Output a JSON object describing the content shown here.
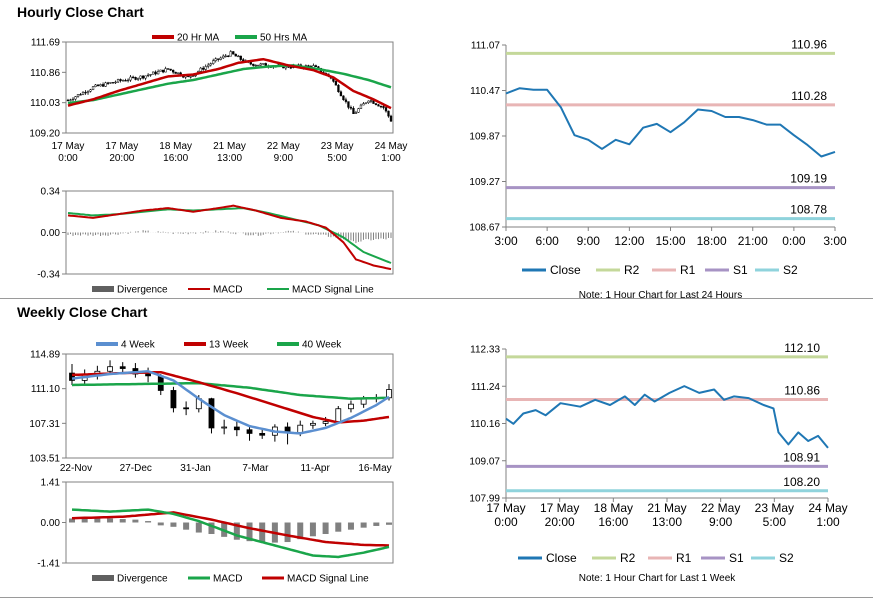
{
  "sections": {
    "hourly_title": "Hourly Close Chart",
    "weekly_title": "Weekly Close Chart"
  },
  "colors": {
    "ma_short": "#c00000",
    "ma_long": "#1aa54a",
    "ma_fast": "#5b8fd0",
    "close_line": "#1f77b4",
    "r2": "#c4d89a",
    "r1": "#e8b5b5",
    "s1": "#a793c4",
    "s2": "#8fd3dc",
    "divergence": "#808080"
  },
  "chart_data": [
    {
      "id": "hourly_price",
      "type": "candlestick",
      "ylim": [
        109.2,
        111.69
      ],
      "y_ticks": [
        "111.69",
        "110.86",
        "110.03",
        "109.20"
      ],
      "x_ticks": [
        {
          "top": "17 May",
          "bottom": "0:00"
        },
        {
          "top": "17 May",
          "bottom": "20:00"
        },
        {
          "top": "18 May",
          "bottom": "16:00"
        },
        {
          "top": "21 May",
          "bottom": "13:00"
        },
        {
          "top": "22 May",
          "bottom": "9:00"
        },
        {
          "top": "23 May",
          "bottom": "5:00"
        },
        {
          "top": "24 May",
          "bottom": "1:00"
        }
      ],
      "legend": [
        "20 Hr MA",
        "50 Hrs MA"
      ],
      "n": 130,
      "close": [
        [
          0,
          110.1
        ],
        [
          10,
          110.45
        ],
        [
          20,
          110.62
        ],
        [
          30,
          110.75
        ],
        [
          40,
          110.95
        ],
        [
          48,
          110.72
        ],
        [
          58,
          111.15
        ],
        [
          65,
          111.38
        ],
        [
          72,
          111.1
        ],
        [
          85,
          111.02
        ],
        [
          98,
          111.02
        ],
        [
          105,
          110.72
        ],
        [
          110,
          110.15
        ],
        [
          114,
          109.72
        ],
        [
          120,
          110.12
        ],
        [
          126,
          109.9
        ],
        [
          129,
          109.55
        ]
      ],
      "ma20": [
        [
          0,
          109.95
        ],
        [
          10,
          110.12
        ],
        [
          20,
          110.35
        ],
        [
          30,
          110.55
        ],
        [
          40,
          110.75
        ],
        [
          50,
          110.8
        ],
        [
          60,
          110.95
        ],
        [
          68,
          111.12
        ],
        [
          78,
          111.22
        ],
        [
          88,
          111.05
        ],
        [
          98,
          110.92
        ],
        [
          106,
          110.72
        ],
        [
          114,
          110.35
        ],
        [
          122,
          110.12
        ],
        [
          129,
          109.88
        ]
      ],
      "ma50": [
        [
          0,
          110.02
        ],
        [
          10,
          110.1
        ],
        [
          20,
          110.25
        ],
        [
          30,
          110.4
        ],
        [
          40,
          110.55
        ],
        [
          50,
          110.65
        ],
        [
          60,
          110.8
        ],
        [
          70,
          110.95
        ],
        [
          80,
          111.02
        ],
        [
          90,
          111.05
        ],
        [
          100,
          110.95
        ],
        [
          110,
          110.82
        ],
        [
          120,
          110.65
        ],
        [
          129,
          110.45
        ]
      ]
    },
    {
      "id": "hourly_macd",
      "type": "line",
      "ylim": [
        -0.34,
        0.34
      ],
      "y_ticks": [
        "0.34",
        "0.00",
        "-0.34"
      ],
      "legend": [
        "Divergence",
        "MACD",
        "MACD Signal Line"
      ],
      "n": 130,
      "macd": [
        [
          0,
          0.14
        ],
        [
          10,
          0.12
        ],
        [
          20,
          0.15
        ],
        [
          30,
          0.18
        ],
        [
          40,
          0.2
        ],
        [
          50,
          0.17
        ],
        [
          60,
          0.2
        ],
        [
          66,
          0.22
        ],
        [
          75,
          0.18
        ],
        [
          85,
          0.12
        ],
        [
          95,
          0.09
        ],
        [
          103,
          0.04
        ],
        [
          110,
          -0.08
        ],
        [
          115,
          -0.22
        ],
        [
          122,
          -0.27
        ],
        [
          129,
          -0.3
        ]
      ],
      "signal": [
        [
          0,
          0.16
        ],
        [
          10,
          0.14
        ],
        [
          20,
          0.15
        ],
        [
          30,
          0.17
        ],
        [
          40,
          0.19
        ],
        [
          50,
          0.18
        ],
        [
          60,
          0.19
        ],
        [
          70,
          0.2
        ],
        [
          80,
          0.16
        ],
        [
          90,
          0.11
        ],
        [
          100,
          0.06
        ],
        [
          110,
          -0.04
        ],
        [
          118,
          -0.16
        ],
        [
          124,
          -0.21
        ],
        [
          129,
          -0.25
        ]
      ],
      "divergence": [
        [
          0,
          -0.02
        ],
        [
          15,
          -0.02
        ],
        [
          30,
          0.01
        ],
        [
          45,
          -0.01
        ],
        [
          60,
          0.01
        ],
        [
          75,
          -0.02
        ],
        [
          88,
          0.01
        ],
        [
          100,
          -0.02
        ],
        [
          108,
          -0.04
        ],
        [
          114,
          -0.08
        ],
        [
          120,
          -0.06
        ],
        [
          129,
          -0.05
        ]
      ]
    },
    {
      "id": "hourly_levels",
      "type": "line",
      "ylim": [
        108.67,
        111.07
      ],
      "y_ticks": [
        "111.07",
        "110.47",
        "109.87",
        "109.27",
        "108.67"
      ],
      "x_ticks": [
        "3:00",
        "6:00",
        "9:00",
        "12:00",
        "15:00",
        "18:00",
        "21:00",
        "0:00",
        "3:00"
      ],
      "x_range": [
        0,
        24
      ],
      "close": [
        [
          0,
          110.43
        ],
        [
          1,
          110.5
        ],
        [
          2,
          110.48
        ],
        [
          3,
          110.48
        ],
        [
          4,
          110.25
        ],
        [
          5,
          109.88
        ],
        [
          6,
          109.82
        ],
        [
          7,
          109.7
        ],
        [
          8,
          109.82
        ],
        [
          9,
          109.76
        ],
        [
          10,
          109.98
        ],
        [
          11,
          110.03
        ],
        [
          12,
          109.92
        ],
        [
          13,
          110.05
        ],
        [
          14,
          110.22
        ],
        [
          15,
          110.2
        ],
        [
          16,
          110.12
        ],
        [
          17,
          110.12
        ],
        [
          18,
          110.08
        ],
        [
          19,
          110.02
        ],
        [
          20,
          110.02
        ],
        [
          21,
          109.88
        ],
        [
          22,
          109.75
        ],
        [
          23,
          109.6
        ],
        [
          24,
          109.66
        ]
      ],
      "levels": [
        {
          "name": "R2",
          "value": 110.96,
          "label": "110.96"
        },
        {
          "name": "R1",
          "value": 110.28,
          "label": "110.28"
        },
        {
          "name": "S1",
          "value": 109.19,
          "label": "109.19"
        },
        {
          "name": "S2",
          "value": 108.78,
          "label": "108.78"
        }
      ],
      "legend": [
        "Close",
        "R2",
        "R1",
        "S1",
        "S2"
      ],
      "note": "Note: 1 Hour Chart for Last 24 Hours"
    },
    {
      "id": "weekly_price",
      "type": "candlestick",
      "ylim": [
        103.51,
        114.89
      ],
      "y_ticks": [
        "114.89",
        "111.10",
        "107.31",
        "103.51"
      ],
      "x_ticks": [
        "22-Nov",
        "27-Dec",
        "31-Jan",
        "7-Mar",
        "11-Apr",
        "16-May"
      ],
      "legend": [
        "4 Week",
        "13 Week",
        "40 Week"
      ],
      "n": 26,
      "candles": [
        [
          112.8,
          112.0,
          113.8,
          111.5
        ],
        [
          112.0,
          112.6,
          113.2,
          111.4
        ],
        [
          112.6,
          113.0,
          113.6,
          112.1
        ],
        [
          113.0,
          113.5,
          114.2,
          112.8
        ],
        [
          113.5,
          113.3,
          114.0,
          112.7
        ],
        [
          113.3,
          112.7,
          113.9,
          112.3
        ],
        [
          112.7,
          112.5,
          113.4,
          111.8
        ],
        [
          112.5,
          110.9,
          112.7,
          110.4
        ],
        [
          110.9,
          109.0,
          111.3,
          108.5
        ],
        [
          109.0,
          108.9,
          109.7,
          108.2
        ],
        [
          108.9,
          110.0,
          110.4,
          108.5
        ],
        [
          110.0,
          106.8,
          110.1,
          106.2
        ],
        [
          106.8,
          106.9,
          107.7,
          106.1
        ],
        [
          106.9,
          106.6,
          107.5,
          105.9
        ],
        [
          106.6,
          106.2,
          107.0,
          105.4
        ],
        [
          106.2,
          106.0,
          106.6,
          105.6
        ],
        [
          106.0,
          106.9,
          107.2,
          105.3
        ],
        [
          106.9,
          106.3,
          107.4,
          105.0
        ],
        [
          106.3,
          107.1,
          107.6,
          105.9
        ],
        [
          107.1,
          107.3,
          107.6,
          106.7
        ],
        [
          107.3,
          107.5,
          108.0,
          107.0
        ],
        [
          107.5,
          108.9,
          109.2,
          107.3
        ],
        [
          108.9,
          109.4,
          109.8,
          108.5
        ],
        [
          109.4,
          110.0,
          110.3,
          109.0
        ],
        [
          110.0,
          110.1,
          110.5,
          109.6
        ],
        [
          110.1,
          111.0,
          111.6,
          109.8
        ]
      ],
      "ma4": [
        [
          0,
          112.2
        ],
        [
          3,
          112.7
        ],
        [
          6,
          113.0
        ],
        [
          8,
          112.0
        ],
        [
          10,
          110.0
        ],
        [
          12,
          108.2
        ],
        [
          14,
          107.0
        ],
        [
          16,
          106.4
        ],
        [
          18,
          106.2
        ],
        [
          20,
          106.8
        ],
        [
          22,
          107.9
        ],
        [
          24,
          109.3
        ],
        [
          25,
          110.2
        ]
      ],
      "ma13": [
        [
          0,
          112.6
        ],
        [
          4,
          112.8
        ],
        [
          7,
          112.9
        ],
        [
          10,
          111.8
        ],
        [
          13,
          110.6
        ],
        [
          16,
          109.3
        ],
        [
          19,
          108.0
        ],
        [
          21,
          107.4
        ],
        [
          23,
          107.6
        ],
        [
          25,
          108.0
        ]
      ],
      "ma40": [
        [
          0,
          111.5
        ],
        [
          5,
          111.6
        ],
        [
          10,
          111.7
        ],
        [
          14,
          111.2
        ],
        [
          18,
          110.4
        ],
        [
          22,
          110.0
        ],
        [
          25,
          110.1
        ]
      ]
    },
    {
      "id": "weekly_macd",
      "type": "line",
      "ylim": [
        -1.41,
        1.41
      ],
      "y_ticks": [
        "1.41",
        "0.00",
        "-1.41"
      ],
      "legend": [
        "Divergence",
        "MACD",
        "MACD Signal Line"
      ],
      "n": 26,
      "macd": [
        [
          0,
          0.45
        ],
        [
          3,
          0.38
        ],
        [
          6,
          0.45
        ],
        [
          8,
          0.3
        ],
        [
          10,
          0.05
        ],
        [
          13,
          -0.45
        ],
        [
          16,
          -0.8
        ],
        [
          19,
          -1.15
        ],
        [
          21,
          -1.2
        ],
        [
          23,
          -1.05
        ],
        [
          25,
          -0.85
        ]
      ],
      "signal": [
        [
          0,
          0.15
        ],
        [
          4,
          0.2
        ],
        [
          8,
          0.35
        ],
        [
          11,
          0.1
        ],
        [
          14,
          -0.2
        ],
        [
          17,
          -0.45
        ],
        [
          20,
          -0.68
        ],
        [
          23,
          -0.78
        ],
        [
          25,
          -0.8
        ]
      ],
      "divergence": [
        0.14,
        0.14,
        0.14,
        0.14,
        0.12,
        0.1,
        0.05,
        -0.1,
        -0.15,
        -0.25,
        -0.35,
        -0.4,
        -0.5,
        -0.6,
        -0.65,
        -0.68,
        -0.7,
        -0.68,
        -0.58,
        -0.48,
        -0.4,
        -0.32,
        -0.25,
        -0.18,
        -0.12,
        -0.08
      ]
    },
    {
      "id": "weekly_levels",
      "type": "line",
      "ylim": [
        107.99,
        112.33
      ],
      "y_ticks": [
        "112.33",
        "111.24",
        "110.16",
        "109.07",
        "107.99"
      ],
      "x_ticks": [
        {
          "top": "17 May",
          "bottom": "0:00"
        },
        {
          "top": "17 May",
          "bottom": "20:00"
        },
        {
          "top": "18 May",
          "bottom": "16:00"
        },
        {
          "top": "21 May",
          "bottom": "13:00"
        },
        {
          "top": "22 May",
          "bottom": "9:00"
        },
        {
          "top": "23 May",
          "bottom": "5:00"
        },
        {
          "top": "24 May",
          "bottom": "1:00"
        }
      ],
      "x_range": [
        0,
        130
      ],
      "close": [
        [
          0,
          110.3
        ],
        [
          3,
          110.15
        ],
        [
          7,
          110.45
        ],
        [
          12,
          110.55
        ],
        [
          16,
          110.4
        ],
        [
          22,
          110.75
        ],
        [
          30,
          110.65
        ],
        [
          36,
          110.85
        ],
        [
          42,
          110.7
        ],
        [
          48,
          110.95
        ],
        [
          52,
          110.7
        ],
        [
          56,
          111.0
        ],
        [
          60,
          110.8
        ],
        [
          66,
          111.05
        ],
        [
          72,
          111.25
        ],
        [
          78,
          111.05
        ],
        [
          84,
          111.15
        ],
        [
          88,
          110.85
        ],
        [
          92,
          110.95
        ],
        [
          98,
          110.9
        ],
        [
          104,
          110.7
        ],
        [
          108,
          110.6
        ],
        [
          110,
          109.9
        ],
        [
          114,
          109.55
        ],
        [
          118,
          109.9
        ],
        [
          122,
          109.65
        ],
        [
          126,
          109.8
        ],
        [
          130,
          109.45
        ]
      ],
      "levels": [
        {
          "name": "R2",
          "value": 112.1,
          "label": "112.10"
        },
        {
          "name": "R1",
          "value": 110.86,
          "label": "110.86"
        },
        {
          "name": "S1",
          "value": 108.91,
          "label": "108.91"
        },
        {
          "name": "S2",
          "value": 108.2,
          "label": "108.20"
        }
      ],
      "legend": [
        "Close",
        "R2",
        "R1",
        "S1",
        "S2"
      ],
      "note": "Note: 1 Hour Chart for Last 1 Week"
    }
  ]
}
